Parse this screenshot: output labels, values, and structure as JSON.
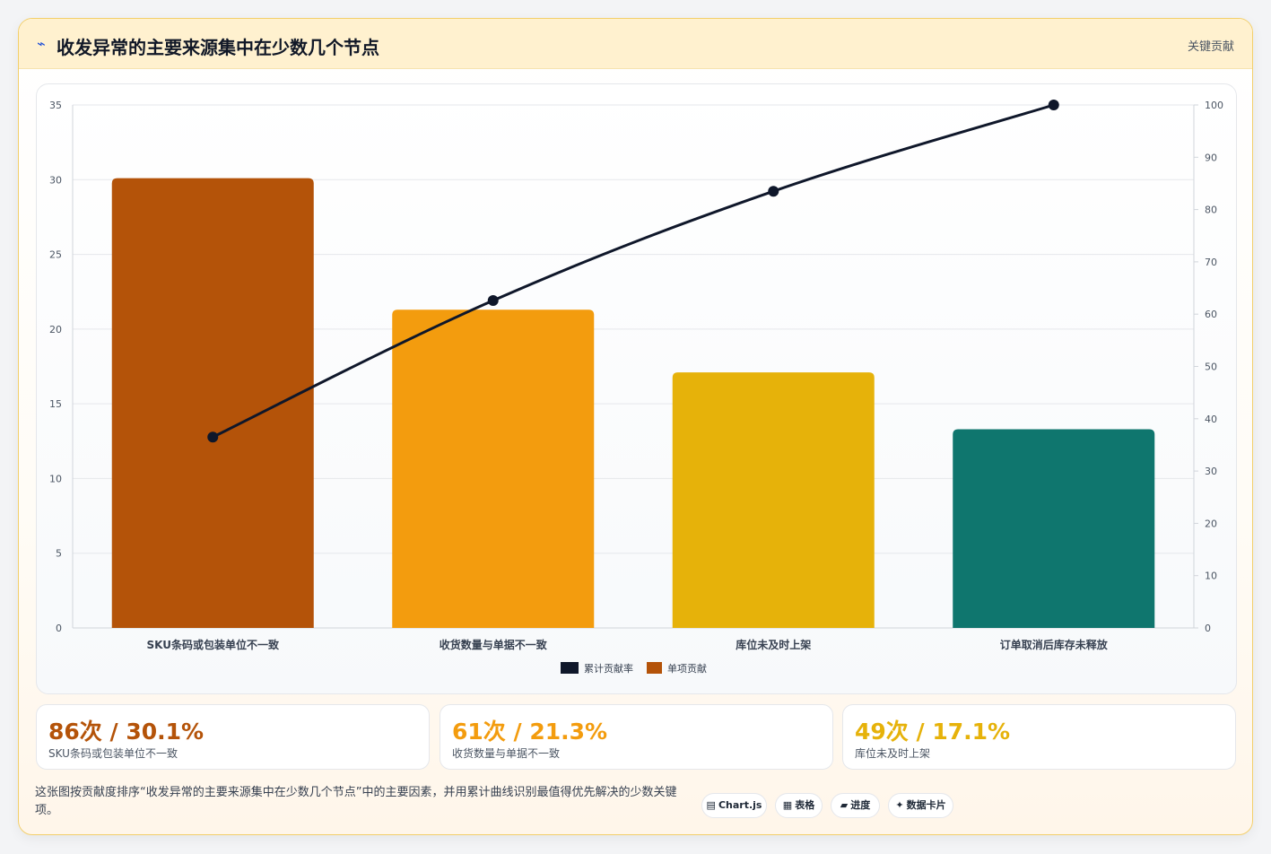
{
  "header": {
    "icon": "lightning-icon",
    "title": "收发异常的主要来源集中在少数几个节点",
    "badge": "关键贡献"
  },
  "chart_data": {
    "type": "bar",
    "categories": [
      "SKU条码或包装单位不一致",
      "收货数量与单据不一致",
      "库位未及时上架",
      "订单取消后库存未释放"
    ],
    "series": [
      {
        "name": "单项贡献",
        "type": "bar",
        "axis": "left",
        "values": [
          30.1,
          21.3,
          17.1,
          13.3
        ],
        "colors": [
          "#b45309",
          "#f39c0e",
          "#e6b20a",
          "#0f766e"
        ]
      },
      {
        "name": "累计贡献率",
        "type": "line",
        "axis": "right",
        "values": [
          36.5,
          62.6,
          83.5,
          100
        ],
        "color": "#0f172a"
      }
    ],
    "left_axis": {
      "min": 0,
      "max": 35,
      "ticks": [
        "0",
        "5",
        "10",
        "15",
        "20",
        "25",
        "30",
        "35"
      ]
    },
    "right_axis": {
      "min": 0,
      "max": 100,
      "ticks": [
        "0",
        "10",
        "20",
        "30",
        "40",
        "50",
        "60",
        "70",
        "80",
        "90",
        "100"
      ]
    },
    "legend": {
      "placement": "bottom",
      "entries": [
        "累计贡献率",
        "单项贡献"
      ]
    },
    "grid": true
  },
  "kpis": [
    {
      "value": "86次 / 30.1%",
      "label": "SKU条码或包装单位不一致",
      "color": "#b45309"
    },
    {
      "value": "61次 / 21.3%",
      "label": "收货数量与单据不一致",
      "color": "#f39c0e"
    },
    {
      "value": "49次 / 17.1%",
      "label": "库位未及时上架",
      "color": "#e6b20a"
    }
  ],
  "description": "这张图按贡献度排序“收发异常的主要来源集中在少数几个节点”中的主要因素，并用累计曲线识别最值得优先解决的少数关键项。",
  "tags": [
    {
      "icon": "chart-icon",
      "glyph": "▤",
      "label": "Chart.js"
    },
    {
      "icon": "table-icon",
      "glyph": "▦",
      "label": "表格"
    },
    {
      "icon": "progress-icon",
      "glyph": "▰",
      "label": "进度"
    },
    {
      "icon": "sparkle-icon",
      "glyph": "✦",
      "label": "数据卡片"
    }
  ]
}
